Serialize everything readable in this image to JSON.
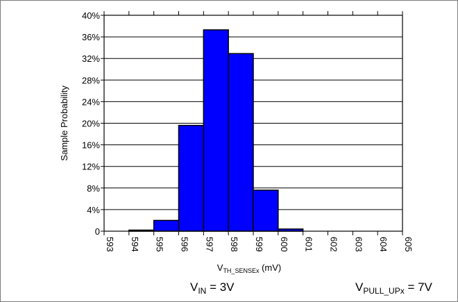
{
  "chart_data": {
    "type": "bar",
    "title": "",
    "xlabel": {
      "main": "V",
      "sub": "TH_SENSEx",
      "unit": " (mV)"
    },
    "ylabel": "Sample Probability",
    "x_ticks": [
      "593",
      "594",
      "595",
      "596",
      "597",
      "598",
      "599",
      "600",
      "601",
      "602",
      "603",
      "604",
      "605"
    ],
    "y_ticks": [
      "0",
      "4%",
      "8%",
      "12%",
      "16%",
      "20%",
      "24%",
      "28%",
      "32%",
      "36%",
      "40%"
    ],
    "xlim": [
      593,
      605
    ],
    "ylim": [
      0,
      40
    ],
    "grid": "horizontal",
    "bars": [
      {
        "start": 594,
        "end": 595,
        "value": 0.2
      },
      {
        "start": 595,
        "end": 596,
        "value": 2.0
      },
      {
        "start": 596,
        "end": 597,
        "value": 19.6
      },
      {
        "start": 597,
        "end": 598,
        "value": 37.3
      },
      {
        "start": 598,
        "end": 599,
        "value": 32.9
      },
      {
        "start": 599,
        "end": 600,
        "value": 7.6
      },
      {
        "start": 600,
        "end": 601,
        "value": 0.4
      }
    ],
    "bar_color": "#0000ff",
    "conditions": {
      "vin": {
        "main": "V",
        "sub": "IN",
        "rest": " = 3V"
      },
      "vpull": {
        "main": "V",
        "sub": "PULL_UPx",
        "rest": " = 7V"
      }
    }
  }
}
